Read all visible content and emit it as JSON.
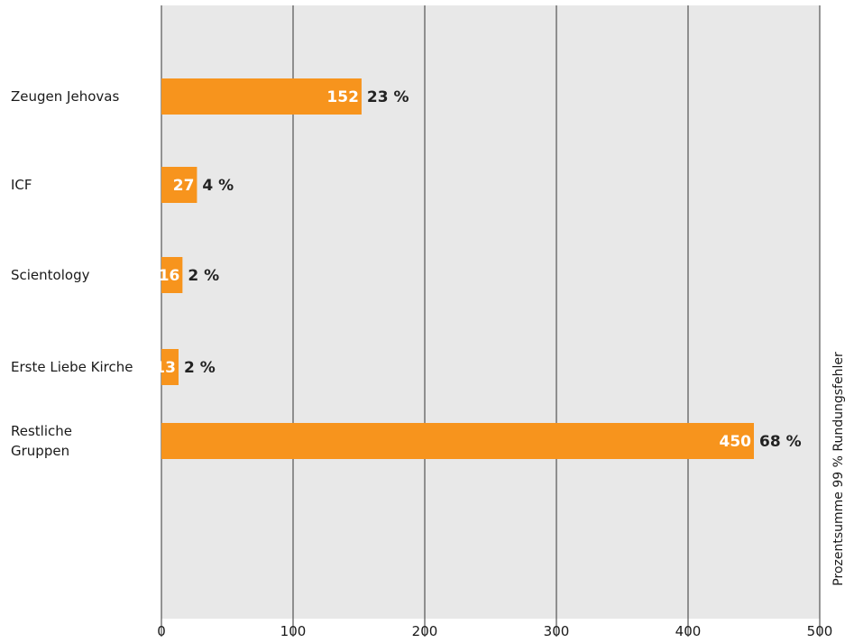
{
  "colors": {
    "bar": "#f7941d",
    "plot_background": "#e8e8e8",
    "gridline": "#333333",
    "page_background": "#ffffff"
  },
  "chart_data": {
    "type": "bar",
    "orientation": "horizontal",
    "categories": [
      "Zeugen Jehovas",
      "ICF",
      "Scientology",
      "Erste Liebe Kirche",
      "Restliche Gruppen"
    ],
    "category_lines": [
      [
        "Zeugen Jehovas"
      ],
      [
        "ICF"
      ],
      [
        "Scientology"
      ],
      [
        "Erste Liebe Kirche"
      ],
      [
        "Restliche",
        "Gruppen"
      ]
    ],
    "values": [
      152,
      27,
      16,
      13,
      450
    ],
    "value_labels": [
      "152",
      "27",
      "16",
      "13",
      "450"
    ],
    "percent_labels": [
      "23 %",
      "4 %",
      "2 %",
      "2 %",
      "68 %"
    ],
    "xlim": [
      0,
      500
    ],
    "xticks": [
      0,
      100,
      200,
      300,
      400,
      500
    ],
    "xtick_labels": [
      "0",
      "100",
      "200",
      "300",
      "400",
      "500"
    ],
    "grid": true,
    "note": "Prozentsumme 99 % Rundungsfehler",
    "title": "",
    "xlabel": "",
    "ylabel": ""
  }
}
